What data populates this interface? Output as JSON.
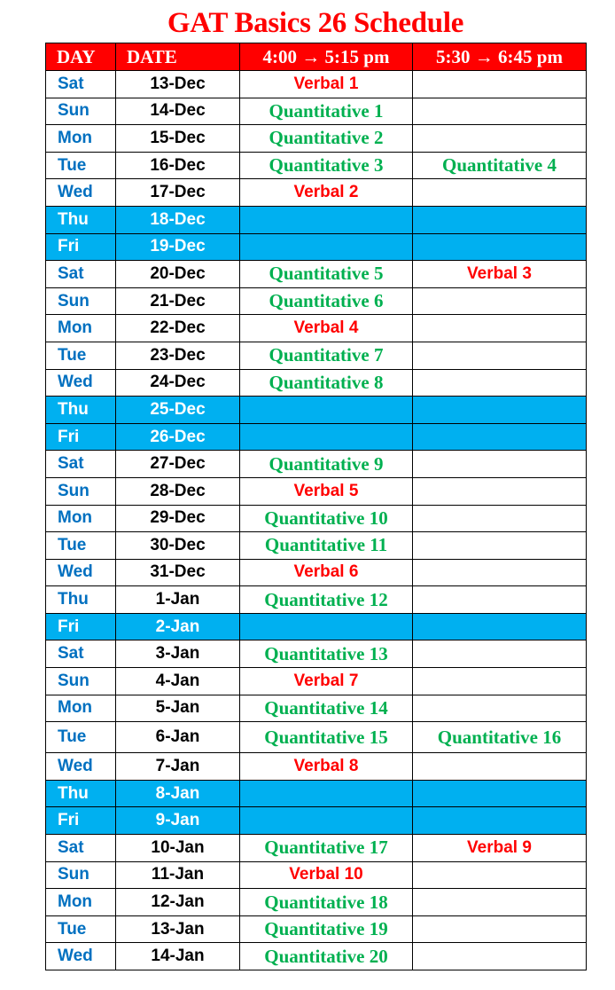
{
  "title": "GAT Basics 26 Schedule",
  "headers": {
    "day": "DAY",
    "date": "DATE",
    "slot1": "4:00 → 5:15 pm",
    "slot2": "5:30 → 6:45 pm"
  },
  "colors": {
    "header_bg": "#ff0000",
    "off_day_bg": "#00b0f0",
    "day_text": "#0070c0",
    "quantitative": "#00b050",
    "verbal": "#ff0000"
  },
  "rows": [
    {
      "day": "Sat",
      "date": "13-Dec",
      "slot1": "Verbal 1",
      "slot2": ""
    },
    {
      "day": "Sun",
      "date": "14-Dec",
      "slot1": "Quantitative 1",
      "slot2": ""
    },
    {
      "day": "Mon",
      "date": "15-Dec",
      "slot1": "Quantitative 2",
      "slot2": ""
    },
    {
      "day": "Tue",
      "date": "16-Dec",
      "slot1": "Quantitative 3",
      "slot2": "Quantitative 4"
    },
    {
      "day": "Wed",
      "date": "17-Dec",
      "slot1": "Verbal 2",
      "slot2": ""
    },
    {
      "day": "Thu",
      "date": "18-Dec",
      "slot1": "",
      "slot2": "",
      "off": true
    },
    {
      "day": "Fri",
      "date": "19-Dec",
      "slot1": "",
      "slot2": "",
      "off": true
    },
    {
      "day": "Sat",
      "date": "20-Dec",
      "slot1": "Quantitative 5",
      "slot2": "Verbal 3"
    },
    {
      "day": "Sun",
      "date": "21-Dec",
      "slot1": "Quantitative 6",
      "slot2": ""
    },
    {
      "day": "Mon",
      "date": "22-Dec",
      "slot1": "Verbal 4",
      "slot2": ""
    },
    {
      "day": "Tue",
      "date": "23-Dec",
      "slot1": "Quantitative 7",
      "slot2": ""
    },
    {
      "day": "Wed",
      "date": "24-Dec",
      "slot1": "Quantitative 8",
      "slot2": ""
    },
    {
      "day": "Thu",
      "date": "25-Dec",
      "slot1": "",
      "slot2": "",
      "off": true
    },
    {
      "day": "Fri",
      "date": "26-Dec",
      "slot1": "",
      "slot2": "",
      "off": true
    },
    {
      "day": "Sat",
      "date": "27-Dec",
      "slot1": "Quantitative 9",
      "slot2": ""
    },
    {
      "day": "Sun",
      "date": "28-Dec",
      "slot1": "Verbal 5",
      "slot2": ""
    },
    {
      "day": "Mon",
      "date": "29-Dec",
      "slot1": "Quantitative 10",
      "slot2": ""
    },
    {
      "day": "Tue",
      "date": "30-Dec",
      "slot1": "Quantitative 11",
      "slot2": ""
    },
    {
      "day": "Wed",
      "date": "31-Dec",
      "slot1": "Verbal 6",
      "slot2": ""
    },
    {
      "day": "Thu",
      "date": "1-Jan",
      "slot1": "Quantitative 12",
      "slot2": ""
    },
    {
      "day": "Fri",
      "date": "2-Jan",
      "slot1": "",
      "slot2": "",
      "off": true
    },
    {
      "day": "Sat",
      "date": "3-Jan",
      "slot1": "Quantitative 13",
      "slot2": ""
    },
    {
      "day": "Sun",
      "date": "4-Jan",
      "slot1": "Verbal 7",
      "slot2": ""
    },
    {
      "day": "Mon",
      "date": "5-Jan",
      "slot1": "Quantitative 14",
      "slot2": ""
    },
    {
      "day": "Tue",
      "date": "6-Jan",
      "slot1": "Quantitative 15",
      "slot2": "Quantitative 16"
    },
    {
      "day": "Wed",
      "date": "7-Jan",
      "slot1": "Verbal 8",
      "slot2": ""
    },
    {
      "day": "Thu",
      "date": "8-Jan",
      "slot1": "",
      "slot2": "",
      "off": true
    },
    {
      "day": "Fri",
      "date": "9-Jan",
      "slot1": "",
      "slot2": "",
      "off": true
    },
    {
      "day": "Sat",
      "date": "10-Jan",
      "slot1": "Quantitative 17",
      "slot2": "Verbal 9"
    },
    {
      "day": "Sun",
      "date": "11-Jan",
      "slot1": "Verbal 10",
      "slot2": ""
    },
    {
      "day": "Mon",
      "date": "12-Jan",
      "slot1": "Quantitative 18",
      "slot2": ""
    },
    {
      "day": "Tue",
      "date": "13-Jan",
      "slot1": "Quantitative 19",
      "slot2": ""
    },
    {
      "day": "Wed",
      "date": "14-Jan",
      "slot1": "Quantitative 20",
      "slot2": ""
    }
  ]
}
